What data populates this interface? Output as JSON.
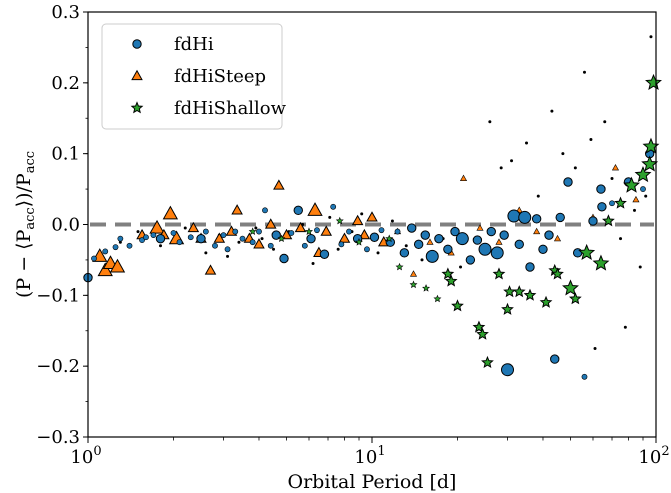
{
  "chart_data": {
    "type": "scatter",
    "xscale": "log",
    "xlim": [
      1,
      100
    ],
    "ylim": [
      -0.3,
      0.3
    ],
    "xlabel": "Orbital Period [d]",
    "ylabel": {
      "parts": [
        {
          "text": "(P − ⟨P",
          "sub": false
        },
        {
          "text": "acc",
          "sub": true
        },
        {
          "text": "⟩)/P",
          "sub": false
        },
        {
          "text": "acc",
          "sub": true
        }
      ]
    },
    "xticks": [
      {
        "value": 1,
        "base": "10",
        "exp": "0"
      },
      {
        "value": 10,
        "base": "10",
        "exp": "1"
      },
      {
        "value": 100,
        "base": "10",
        "exp": "2"
      }
    ],
    "yticks": [
      {
        "value": -0.3,
        "label": "−0.3"
      },
      {
        "value": -0.2,
        "label": "−0.2"
      },
      {
        "value": -0.1,
        "label": "−0.1"
      },
      {
        "value": 0.0,
        "label": "0.0"
      },
      {
        "value": 0.1,
        "label": "0.1"
      },
      {
        "value": 0.2,
        "label": "0.2"
      },
      {
        "value": 0.3,
        "label": "0.3"
      }
    ],
    "grid": false,
    "legend_position": "top-left",
    "reference_line": {
      "y": 0.0,
      "style": "dashed",
      "color": "#808080"
    },
    "series": [
      {
        "name": "fdHi",
        "marker": "circle",
        "color": "#1f77b4",
        "points": [
          {
            "x": 1.0,
            "y": -0.075,
            "size": 2
          },
          {
            "x": 1.05,
            "y": -0.048,
            "size": 1
          },
          {
            "x": 1.15,
            "y": -0.038,
            "size": 1
          },
          {
            "x": 1.25,
            "y": -0.032,
            "size": 1
          },
          {
            "x": 1.3,
            "y": -0.02,
            "size": 1
          },
          {
            "x": 1.4,
            "y": -0.03,
            "size": 1
          },
          {
            "x": 1.55,
            "y": -0.022,
            "size": 1
          },
          {
            "x": 1.6,
            "y": -0.018,
            "size": 1
          },
          {
            "x": 1.7,
            "y": -0.015,
            "size": 1
          },
          {
            "x": 1.8,
            "y": -0.02,
            "size": 2
          },
          {
            "x": 2.0,
            "y": -0.012,
            "size": 1
          },
          {
            "x": 2.1,
            "y": -0.025,
            "size": 1
          },
          {
            "x": 2.3,
            "y": -0.018,
            "size": 1
          },
          {
            "x": 2.5,
            "y": -0.02,
            "size": 2
          },
          {
            "x": 2.6,
            "y": -0.01,
            "size": 1
          },
          {
            "x": 2.8,
            "y": -0.03,
            "size": 1
          },
          {
            "x": 3.0,
            "y": -0.015,
            "size": 1
          },
          {
            "x": 3.1,
            "y": -0.035,
            "size": 1
          },
          {
            "x": 3.3,
            "y": -0.01,
            "size": 1
          },
          {
            "x": 3.5,
            "y": -0.02,
            "size": 1
          },
          {
            "x": 3.8,
            "y": -0.025,
            "size": 1
          },
          {
            "x": 4.0,
            "y": -0.01,
            "size": 1
          },
          {
            "x": 4.2,
            "y": 0.02,
            "size": 1
          },
          {
            "x": 4.4,
            "y": -0.03,
            "size": 1
          },
          {
            "x": 4.6,
            "y": -0.015,
            "size": 2
          },
          {
            "x": 4.9,
            "y": -0.048,
            "size": 2
          },
          {
            "x": 5.2,
            "y": -0.012,
            "size": 1
          },
          {
            "x": 5.5,
            "y": 0.02,
            "size": 2
          },
          {
            "x": 5.8,
            "y": -0.03,
            "size": 1
          },
          {
            "x": 6.1,
            "y": -0.02,
            "size": 2
          },
          {
            "x": 6.4,
            "y": -0.008,
            "size": 1
          },
          {
            "x": 6.8,
            "y": -0.042,
            "size": 2
          },
          {
            "x": 7.3,
            "y": 0.025,
            "size": 1
          },
          {
            "x": 7.8,
            "y": -0.028,
            "size": 1
          },
          {
            "x": 8.3,
            "y": -0.01,
            "size": 1
          },
          {
            "x": 8.9,
            "y": -0.02,
            "size": 2
          },
          {
            "x": 9.6,
            "y": -0.035,
            "size": 1
          },
          {
            "x": 10.2,
            "y": -0.018,
            "size": 2
          },
          {
            "x": 10.8,
            "y": -0.008,
            "size": 1
          },
          {
            "x": 11.6,
            "y": -0.025,
            "size": 2
          },
          {
            "x": 12.3,
            "y": -0.01,
            "size": 1
          },
          {
            "x": 13.0,
            "y": -0.04,
            "size": 2
          },
          {
            "x": 13.8,
            "y": -0.005,
            "size": 2
          },
          {
            "x": 14.6,
            "y": -0.028,
            "size": 2
          },
          {
            "x": 15.4,
            "y": -0.015,
            "size": 2
          },
          {
            "x": 16.3,
            "y": -0.045,
            "size": 3
          },
          {
            "x": 17.2,
            "y": -0.02,
            "size": 2
          },
          {
            "x": 18.5,
            "y": -0.035,
            "size": 2
          },
          {
            "x": 19.6,
            "y": -0.01,
            "size": 2
          },
          {
            "x": 20.8,
            "y": -0.02,
            "size": 3
          },
          {
            "x": 22.2,
            "y": -0.05,
            "size": 2
          },
          {
            "x": 23.5,
            "y": -0.022,
            "size": 2
          },
          {
            "x": 25.0,
            "y": -0.035,
            "size": 3
          },
          {
            "x": 26.3,
            "y": -0.01,
            "size": 2
          },
          {
            "x": 27.6,
            "y": -0.04,
            "size": 3
          },
          {
            "x": 29.2,
            "y": -0.015,
            "size": 2
          },
          {
            "x": 30.0,
            "y": -0.205,
            "size": 3
          },
          {
            "x": 31.6,
            "y": 0.012,
            "size": 3
          },
          {
            "x": 33.0,
            "y": -0.028,
            "size": 2
          },
          {
            "x": 34.5,
            "y": 0.01,
            "size": 3
          },
          {
            "x": 36.0,
            "y": -0.06,
            "size": 2
          },
          {
            "x": 38.0,
            "y": 0.008,
            "size": 2
          },
          {
            "x": 40.0,
            "y": -0.035,
            "size": 2
          },
          {
            "x": 42.0,
            "y": -0.015,
            "size": 2
          },
          {
            "x": 44.0,
            "y": -0.19,
            "size": 2
          },
          {
            "x": 46.0,
            "y": 0.01,
            "size": 2
          },
          {
            "x": 49.0,
            "y": 0.06,
            "size": 2
          },
          {
            "x": 53.0,
            "y": -0.04,
            "size": 2
          },
          {
            "x": 56.0,
            "y": -0.215,
            "size": 1
          },
          {
            "x": 60.0,
            "y": 0.005,
            "size": 2
          },
          {
            "x": 64.0,
            "y": 0.05,
            "size": 2
          },
          {
            "x": 64.5,
            "y": 0.025,
            "size": 2
          },
          {
            "x": 70.0,
            "y": 0.03,
            "size": 1
          },
          {
            "x": 80.0,
            "y": 0.06,
            "size": 2
          },
          {
            "x": 90.0,
            "y": 0.05,
            "size": 1
          },
          {
            "x": 95.0,
            "y": 0.1,
            "size": 2
          }
        ]
      },
      {
        "name": "fdHiSteep",
        "marker": "triangle",
        "color": "#ff7f0e",
        "points": [
          {
            "x": 1.1,
            "y": -0.045,
            "size": 3
          },
          {
            "x": 1.15,
            "y": -0.065,
            "size": 3
          },
          {
            "x": 1.2,
            "y": -0.055,
            "size": 3
          },
          {
            "x": 1.27,
            "y": -0.06,
            "size": 3
          },
          {
            "x": 1.55,
            "y": -0.015,
            "size": 2
          },
          {
            "x": 1.75,
            "y": -0.005,
            "size": 3
          },
          {
            "x": 1.85,
            "y": -0.015,
            "size": 2
          },
          {
            "x": 1.95,
            "y": 0.015,
            "size": 3
          },
          {
            "x": 2.05,
            "y": -0.02,
            "size": 3
          },
          {
            "x": 2.35,
            "y": -0.005,
            "size": 2
          },
          {
            "x": 2.5,
            "y": -0.02,
            "size": 2
          },
          {
            "x": 2.7,
            "y": -0.065,
            "size": 2
          },
          {
            "x": 2.9,
            "y": -0.02,
            "size": 2
          },
          {
            "x": 3.2,
            "y": -0.01,
            "size": 2
          },
          {
            "x": 3.35,
            "y": 0.02,
            "size": 2
          },
          {
            "x": 3.7,
            "y": -0.02,
            "size": 2
          },
          {
            "x": 4.0,
            "y": -0.028,
            "size": 2
          },
          {
            "x": 4.4,
            "y": 0.0,
            "size": 2
          },
          {
            "x": 4.7,
            "y": 0.055,
            "size": 2
          },
          {
            "x": 5.0,
            "y": -0.015,
            "size": 2
          },
          {
            "x": 5.6,
            "y": -0.005,
            "size": 2
          },
          {
            "x": 6.3,
            "y": 0.02,
            "size": 3
          },
          {
            "x": 6.5,
            "y": -0.04,
            "size": 2
          },
          {
            "x": 6.9,
            "y": -0.01,
            "size": 2
          },
          {
            "x": 8.0,
            "y": -0.02,
            "size": 2
          },
          {
            "x": 8.9,
            "y": 0.005,
            "size": 2
          },
          {
            "x": 9.4,
            "y": -0.015,
            "size": 2
          },
          {
            "x": 10.0,
            "y": 0.01,
            "size": 2
          },
          {
            "x": 11.0,
            "y": -0.025,
            "size": 2
          },
          {
            "x": 12.3,
            "y": -0.01,
            "size": 1
          },
          {
            "x": 14.0,
            "y": -0.07,
            "size": 1
          },
          {
            "x": 16.0,
            "y": -0.025,
            "size": 1
          },
          {
            "x": 19.0,
            "y": -0.04,
            "size": 1
          },
          {
            "x": 21.0,
            "y": 0.065,
            "size": 1
          },
          {
            "x": 24.0,
            "y": -0.005,
            "size": 1
          },
          {
            "x": 28.0,
            "y": -0.025,
            "size": 1
          },
          {
            "x": 33.0,
            "y": 0.02,
            "size": 1
          },
          {
            "x": 38.0,
            "y": -0.01,
            "size": 1
          },
          {
            "x": 45.0,
            "y": -0.02,
            "size": 1
          },
          {
            "x": 60.0,
            "y": 0.01,
            "size": 1
          },
          {
            "x": 72.0,
            "y": 0.08,
            "size": 1
          },
          {
            "x": 85.0,
            "y": 0.035,
            "size": 1
          }
        ]
      },
      {
        "name": "fdHiShallow",
        "marker": "star",
        "color": "#2ca02c",
        "points": [
          {
            "x": 3.8,
            "y": -0.01,
            "size": 1
          },
          {
            "x": 4.8,
            "y": -0.02,
            "size": 1
          },
          {
            "x": 6.0,
            "y": -0.01,
            "size": 1
          },
          {
            "x": 7.7,
            "y": 0.005,
            "size": 1
          },
          {
            "x": 9.0,
            "y": -0.025,
            "size": 1
          },
          {
            "x": 11.5,
            "y": -0.02,
            "size": 1
          },
          {
            "x": 12.5,
            "y": -0.06,
            "size": 1
          },
          {
            "x": 14.0,
            "y": -0.085,
            "size": 1
          },
          {
            "x": 15.5,
            "y": -0.09,
            "size": 1
          },
          {
            "x": 17.0,
            "y": -0.105,
            "size": 1
          },
          {
            "x": 18.5,
            "y": -0.07,
            "size": 2
          },
          {
            "x": 19.0,
            "y": -0.08,
            "size": 2
          },
          {
            "x": 20.0,
            "y": -0.115,
            "size": 2
          },
          {
            "x": 23.8,
            "y": -0.145,
            "size": 2
          },
          {
            "x": 24.5,
            "y": -0.155,
            "size": 2
          },
          {
            "x": 25.5,
            "y": -0.195,
            "size": 2
          },
          {
            "x": 28.0,
            "y": -0.07,
            "size": 2
          },
          {
            "x": 30.0,
            "y": -0.12,
            "size": 2
          },
          {
            "x": 30.5,
            "y": -0.095,
            "size": 2
          },
          {
            "x": 33.0,
            "y": -0.095,
            "size": 2
          },
          {
            "x": 36.0,
            "y": -0.1,
            "size": 2
          },
          {
            "x": 41.0,
            "y": -0.11,
            "size": 2
          },
          {
            "x": 44.0,
            "y": -0.065,
            "size": 2
          },
          {
            "x": 45.0,
            "y": -0.07,
            "size": 2
          },
          {
            "x": 50.0,
            "y": -0.09,
            "size": 3
          },
          {
            "x": 52.0,
            "y": -0.105,
            "size": 2
          },
          {
            "x": 57.0,
            "y": -0.04,
            "size": 3
          },
          {
            "x": 64.0,
            "y": -0.055,
            "size": 3
          },
          {
            "x": 68.0,
            "y": 0.005,
            "size": 2
          },
          {
            "x": 75.0,
            "y": 0.03,
            "size": 2
          },
          {
            "x": 82.0,
            "y": 0.055,
            "size": 3
          },
          {
            "x": 90.0,
            "y": 0.07,
            "size": 3
          },
          {
            "x": 95.0,
            "y": 0.085,
            "size": 3
          },
          {
            "x": 96.0,
            "y": 0.11,
            "size": 3
          },
          {
            "x": 98.0,
            "y": 0.2,
            "size": 3
          }
        ]
      },
      {
        "name": "",
        "marker": "point",
        "color": "#000000",
        "points": [
          {
            "x": 1.3,
            "y": -0.025
          },
          {
            "x": 1.5,
            "y": -0.01
          },
          {
            "x": 1.8,
            "y": -0.03
          },
          {
            "x": 2.2,
            "y": -0.005
          },
          {
            "x": 2.6,
            "y": -0.04
          },
          {
            "x": 2.9,
            "y": -0.015
          },
          {
            "x": 3.1,
            "y": -0.045
          },
          {
            "x": 3.4,
            "y": -0.025
          },
          {
            "x": 3.9,
            "y": -0.005
          },
          {
            "x": 4.1,
            "y": -0.02
          },
          {
            "x": 4.5,
            "y": -0.035
          },
          {
            "x": 5.1,
            "y": -0.01
          },
          {
            "x": 5.7,
            "y": 0.0
          },
          {
            "x": 6.2,
            "y": -0.055
          },
          {
            "x": 7.1,
            "y": 0.01
          },
          {
            "x": 7.6,
            "y": -0.035
          },
          {
            "x": 8.5,
            "y": -0.01
          },
          {
            "x": 9.2,
            "y": 0.015
          },
          {
            "x": 10.5,
            "y": -0.04
          },
          {
            "x": 11.8,
            "y": 0.005
          },
          {
            "x": 13.2,
            "y": -0.03
          },
          {
            "x": 15.0,
            "y": -0.05
          },
          {
            "x": 17.8,
            "y": -0.02
          },
          {
            "x": 20.5,
            "y": -0.06
          },
          {
            "x": 26.0,
            "y": 0.145
          },
          {
            "x": 28.5,
            "y": 0.08
          },
          {
            "x": 31.0,
            "y": 0.09
          },
          {
            "x": 35.0,
            "y": 0.115
          },
          {
            "x": 38.5,
            "y": 0.04
          },
          {
            "x": 43.0,
            "y": 0.16
          },
          {
            "x": 47.0,
            "y": 0.1
          },
          {
            "x": 52.0,
            "y": 0.08
          },
          {
            "x": 56.0,
            "y": 0.215
          },
          {
            "x": 59.0,
            "y": 0.12
          },
          {
            "x": 61.0,
            "y": -0.175
          },
          {
            "x": 66.0,
            "y": 0.145
          },
          {
            "x": 70.0,
            "y": 0.065
          },
          {
            "x": 75.0,
            "y": -0.02
          },
          {
            "x": 78.0,
            "y": -0.145
          },
          {
            "x": 84.0,
            "y": 0.02
          },
          {
            "x": 88.0,
            "y": -0.06
          },
          {
            "x": 92.0,
            "y": 0.04
          },
          {
            "x": 96.0,
            "y": 0.265
          }
        ]
      }
    ]
  }
}
